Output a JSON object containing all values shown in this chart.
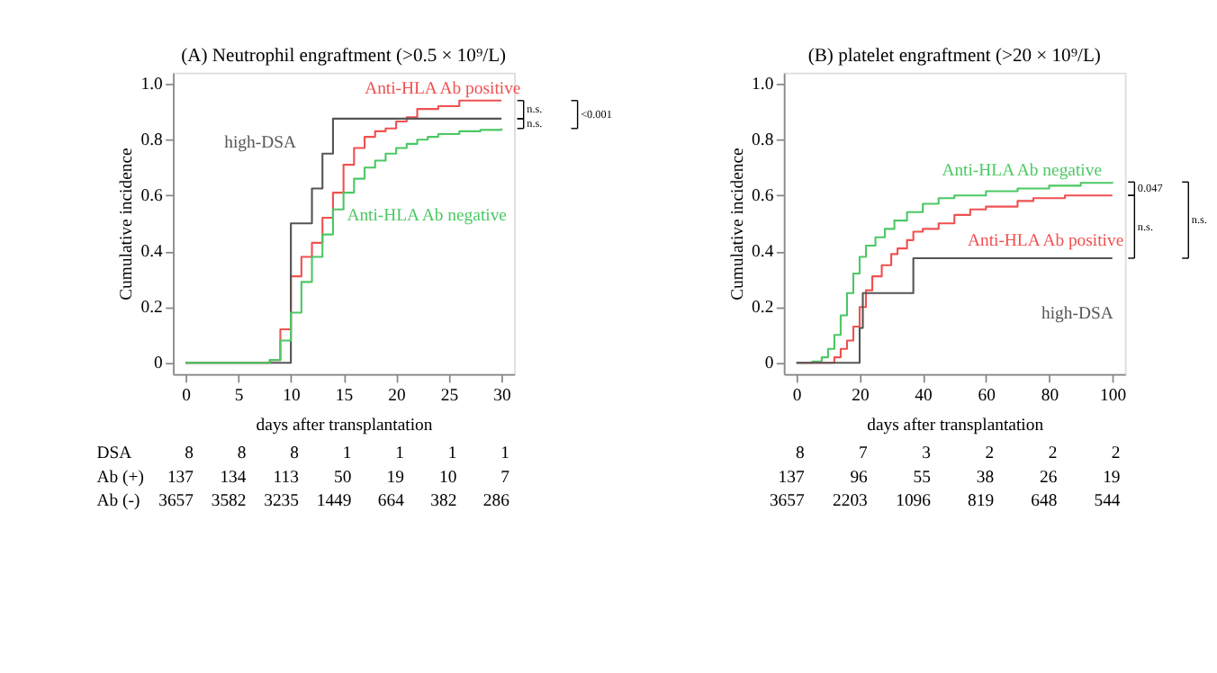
{
  "chart_data": [
    {
      "type": "step",
      "title": "(A) Neutrophil engraftment (>0.5 × 10⁹/L)",
      "xlabel": "days after transplantation",
      "ylabel": "Cumulative incidence",
      "xlim": [
        -1.2,
        31.2
      ],
      "xticks": [
        0,
        5,
        10,
        15,
        20,
        25,
        30
      ],
      "ylim": [
        -0.04,
        1.04
      ],
      "yticks": [
        0,
        0.2,
        0.4,
        0.6,
        0.8,
        {
          "value": 1,
          "label": "1.0"
        }
      ],
      "grid": false,
      "legend": false,
      "series": [
        {
          "name": "Anti-HLA Ab positive",
          "color": "#f05050",
          "x": [
            0,
            8,
            9,
            10,
            11,
            12,
            13,
            14,
            15,
            16,
            17,
            18,
            19,
            20,
            21,
            22,
            24,
            26,
            30
          ],
          "values": [
            0,
            0.01,
            0.12,
            0.31,
            0.38,
            0.43,
            0.52,
            0.61,
            0.71,
            0.77,
            0.81,
            0.83,
            0.84,
            0.865,
            0.88,
            0.91,
            0.92,
            0.94,
            0.94
          ]
        },
        {
          "name": "high-DSA",
          "color": "#555555",
          "x": [
            0,
            10,
            12,
            13,
            14,
            30
          ],
          "values": [
            0,
            0.5,
            0.625,
            0.75,
            0.875,
            0.875
          ]
        },
        {
          "name": "Anti-HLA Ab negative",
          "color": "#4cc864",
          "x": [
            0,
            8,
            9,
            10,
            11,
            12,
            13,
            14,
            15,
            16,
            17,
            18,
            19,
            20,
            21,
            22,
            23,
            24,
            26,
            28,
            30
          ],
          "values": [
            0,
            0.01,
            0.08,
            0.18,
            0.29,
            0.38,
            0.46,
            0.55,
            0.61,
            0.66,
            0.7,
            0.725,
            0.75,
            0.77,
            0.785,
            0.8,
            0.81,
            0.82,
            0.83,
            0.835,
            0.84
          ]
        }
      ],
      "annotations": [
        "n.s.",
        "n.s.",
        "<0.001",
        "DSA",
        "Ab (+)",
        "Ab (-)",
        "8 8 8 1 1 1 1",
        "137 134 113 50 19 10 7",
        "3657 3582 3235 1449 664 382 286"
      ]
    },
    {
      "type": "step",
      "title": "(B) platelet engraftment (>20 × 10⁹/L)",
      "xlabel": "days after transplantation",
      "ylabel": "Cumulative incidence",
      "xlim": [
        -4,
        104
      ],
      "xticks": [
        0,
        20,
        40,
        60,
        80,
        100
      ],
      "ylim": [
        -0.04,
        1.04
      ],
      "yticks": [
        0,
        0.2,
        0.4,
        0.6,
        0.8,
        {
          "value": 1,
          "label": "1.0"
        }
      ],
      "grid": false,
      "legend": false,
      "series": [
        {
          "name": "Anti-HLA Ab negative",
          "color": "#4cc864",
          "x": [
            0,
            5,
            8,
            10,
            12,
            14,
            16,
            18,
            20,
            22,
            25,
            28,
            31,
            35,
            40,
            45,
            50,
            60,
            70,
            80,
            90,
            100
          ],
          "values": [
            0,
            0.005,
            0.02,
            0.05,
            0.1,
            0.17,
            0.25,
            0.32,
            0.38,
            0.42,
            0.45,
            0.48,
            0.51,
            0.54,
            0.57,
            0.59,
            0.6,
            0.615,
            0.625,
            0.635,
            0.645,
            0.648
          ]
        },
        {
          "name": "Anti-HLA Ab positive",
          "color": "#f05050",
          "x": [
            0,
            12,
            14,
            16,
            18,
            20,
            22,
            24,
            27,
            30,
            32,
            35,
            37,
            40,
            45,
            50,
            55,
            60,
            70,
            75,
            85,
            100
          ],
          "values": [
            0,
            0.02,
            0.05,
            0.08,
            0.13,
            0.2,
            0.26,
            0.31,
            0.35,
            0.39,
            0.41,
            0.44,
            0.47,
            0.48,
            0.5,
            0.53,
            0.55,
            0.56,
            0.58,
            0.59,
            0.6,
            0.6
          ]
        },
        {
          "name": "high-DSA",
          "color": "#555555",
          "x": [
            0,
            20,
            21,
            37,
            100
          ],
          "values": [
            0,
            0.125,
            0.25,
            0.375,
            0.375
          ]
        }
      ],
      "annotations": [
        "0.047",
        "n.s.",
        "n.s.",
        "8 7 3 2 2 2",
        "137 96 55 38 26 19",
        "3657 2203 1096 819 648 544"
      ]
    }
  ]
}
